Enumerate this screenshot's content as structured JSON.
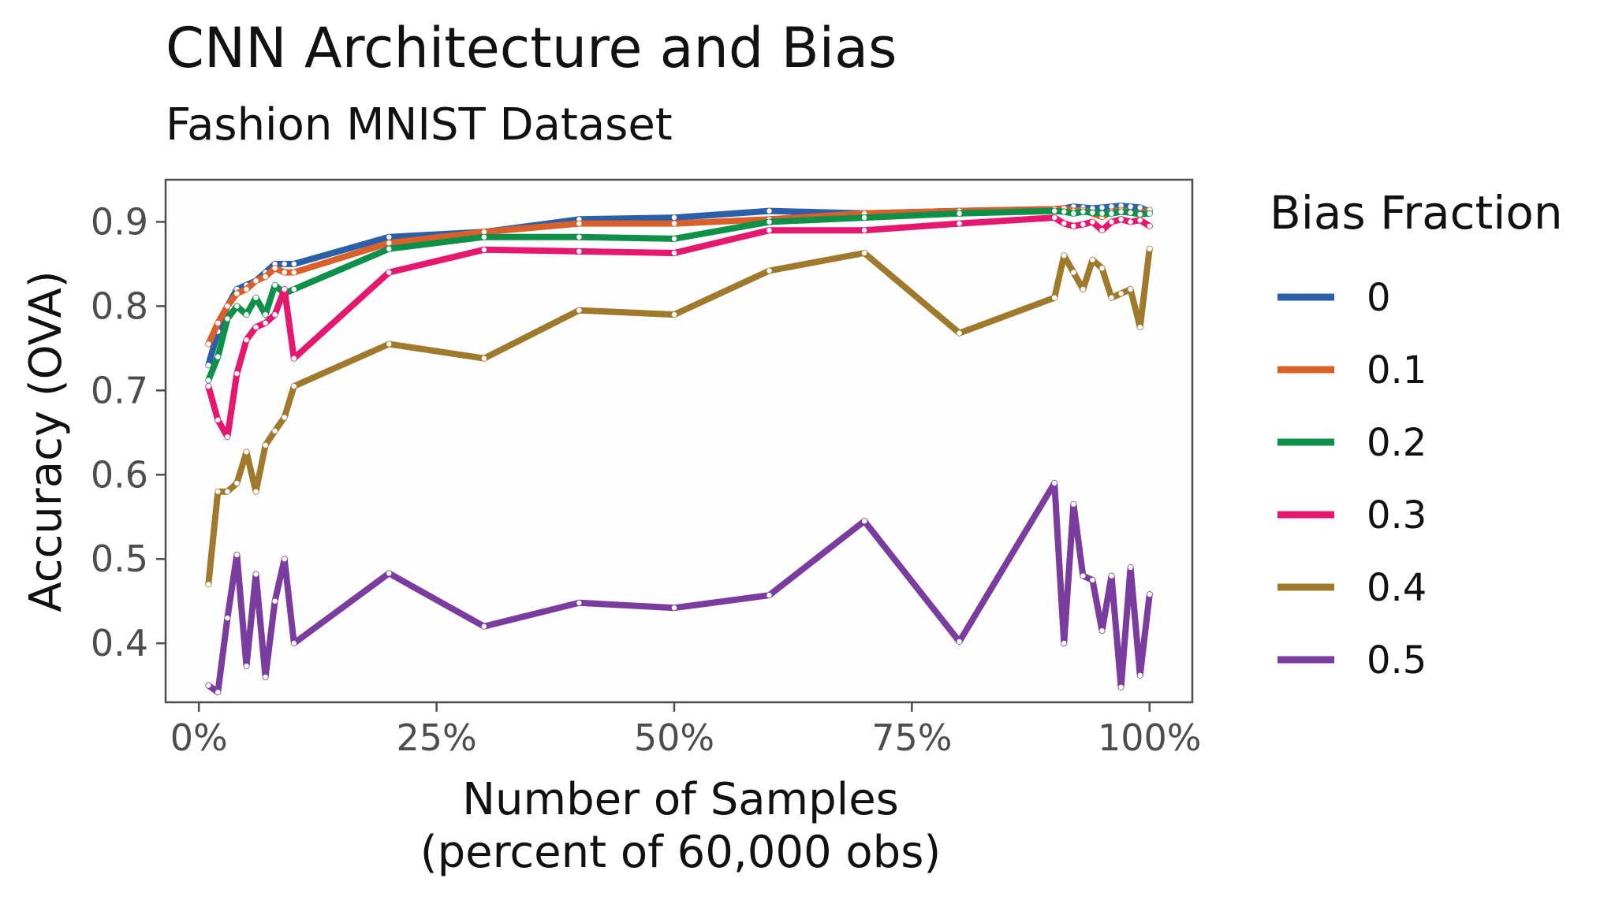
{
  "chart_data": {
    "type": "line",
    "title": "CNN Architecture and Bias",
    "subtitle": "Fashion MNIST Dataset",
    "xlabel_line1": "Number of Samples",
    "xlabel_line2": "(percent of 60,000 obs)",
    "ylabel": "Accuracy (OVA)",
    "xlim": [
      -3.5,
      104.5
    ],
    "ylim": [
      0.33,
      0.95
    ],
    "x_ticks": [
      0,
      25,
      50,
      75,
      100
    ],
    "x_tick_labels": [
      "0%",
      "25%",
      "50%",
      "75%",
      "100%"
    ],
    "y_ticks": [
      0.4,
      0.5,
      0.6,
      0.7,
      0.8,
      0.9
    ],
    "y_tick_labels": [
      "0.4",
      "0.5",
      "0.6",
      "0.7",
      "0.8",
      "0.9"
    ],
    "grid": false,
    "legend": {
      "title": "Bias Fraction",
      "position": "right"
    },
    "x": [
      1,
      2,
      3,
      4,
      5,
      6,
      7,
      8,
      9,
      10,
      20,
      30,
      40,
      50,
      60,
      70,
      80,
      90,
      91,
      92,
      93,
      94,
      95,
      96,
      97,
      98,
      99,
      100
    ],
    "series": [
      {
        "name": "0",
        "color": "#2b5fa8",
        "values": [
          0.73,
          0.77,
          0.8,
          0.82,
          0.825,
          0.83,
          0.84,
          0.85,
          0.85,
          0.85,
          0.882,
          0.888,
          0.903,
          0.905,
          0.913,
          0.91,
          0.913,
          0.915,
          0.916,
          0.918,
          0.917,
          0.916,
          0.917,
          0.918,
          0.919,
          0.918,
          0.917,
          0.912
        ]
      },
      {
        "name": "0.1",
        "color": "#d9602b",
        "values": [
          0.755,
          0.78,
          0.8,
          0.815,
          0.82,
          0.83,
          0.835,
          0.845,
          0.84,
          0.84,
          0.875,
          0.888,
          0.898,
          0.898,
          0.903,
          0.91,
          0.913,
          0.915,
          0.916,
          0.913,
          0.914,
          0.91,
          0.906,
          0.912,
          0.914,
          0.911,
          0.91,
          0.914
        ]
      },
      {
        "name": "0.2",
        "color": "#0e9048",
        "values": [
          0.712,
          0.74,
          0.785,
          0.8,
          0.79,
          0.81,
          0.79,
          0.825,
          0.815,
          0.82,
          0.868,
          0.882,
          0.882,
          0.88,
          0.9,
          0.905,
          0.91,
          0.913,
          0.912,
          0.91,
          0.912,
          0.911,
          0.91,
          0.91,
          0.912,
          0.911,
          0.909,
          0.91
        ]
      },
      {
        "name": "0.3",
        "color": "#e5176f",
        "values": [
          0.705,
          0.665,
          0.645,
          0.72,
          0.76,
          0.775,
          0.78,
          0.79,
          0.82,
          0.738,
          0.84,
          0.867,
          0.865,
          0.863,
          0.89,
          0.89,
          0.898,
          0.905,
          0.898,
          0.895,
          0.897,
          0.9,
          0.89,
          0.9,
          0.903,
          0.9,
          0.902,
          0.895
        ]
      },
      {
        "name": "0.4",
        "color": "#a07a2c",
        "values": [
          0.47,
          0.58,
          0.58,
          0.59,
          0.627,
          0.58,
          0.635,
          0.652,
          0.668,
          0.705,
          0.755,
          0.738,
          0.795,
          0.79,
          0.842,
          0.863,
          0.768,
          0.81,
          0.86,
          0.84,
          0.82,
          0.855,
          0.845,
          0.81,
          0.815,
          0.82,
          0.775,
          0.868
        ]
      },
      {
        "name": "0.5",
        "color": "#7a3d9f",
        "values": [
          0.35,
          0.342,
          0.43,
          0.505,
          0.373,
          0.482,
          0.36,
          0.45,
          0.5,
          0.4,
          0.483,
          0.42,
          0.448,
          0.442,
          0.457,
          0.545,
          0.402,
          0.59,
          0.4,
          0.565,
          0.48,
          0.475,
          0.415,
          0.48,
          0.348,
          0.49,
          0.362,
          0.458
        ]
      }
    ]
  }
}
